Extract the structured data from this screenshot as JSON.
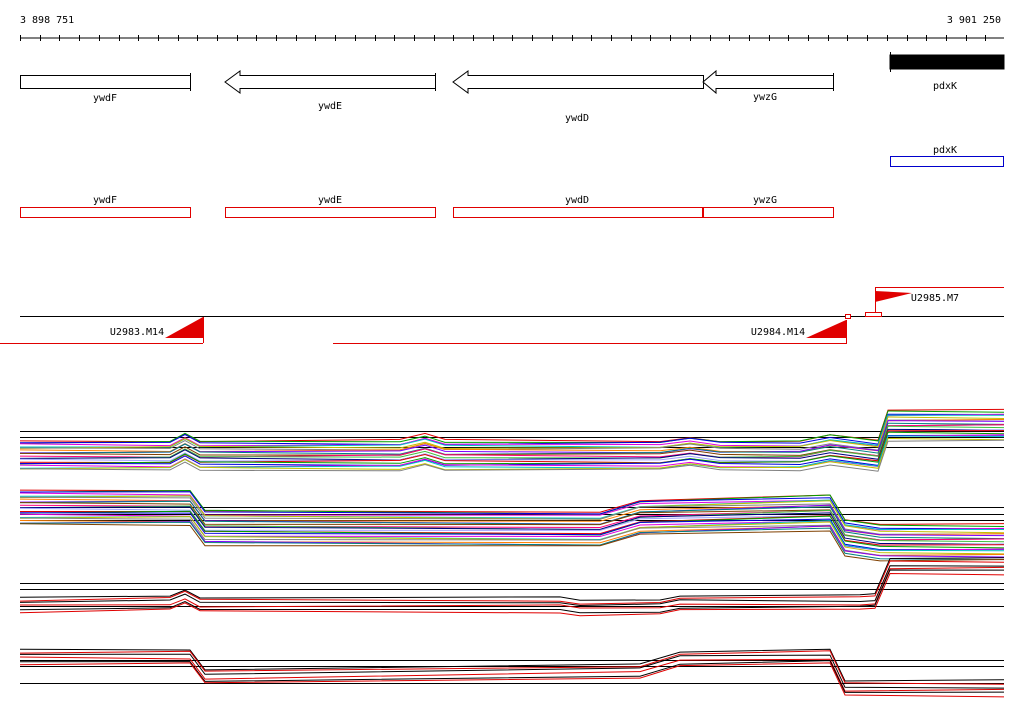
{
  "ruler": {
    "start": "3 898 751",
    "end": "3 901 250"
  },
  "genes": [
    "ywdF",
    "ywdE",
    "ywdD",
    "ywzG",
    "pdxK"
  ],
  "alt_gene": "pdxK",
  "annotated_genes": [
    "ywdF",
    "ywdE",
    "ywdD",
    "ywzG"
  ],
  "transcripts": [
    "U2983.M14",
    "U2984.M14",
    "U2985.M7"
  ]
}
